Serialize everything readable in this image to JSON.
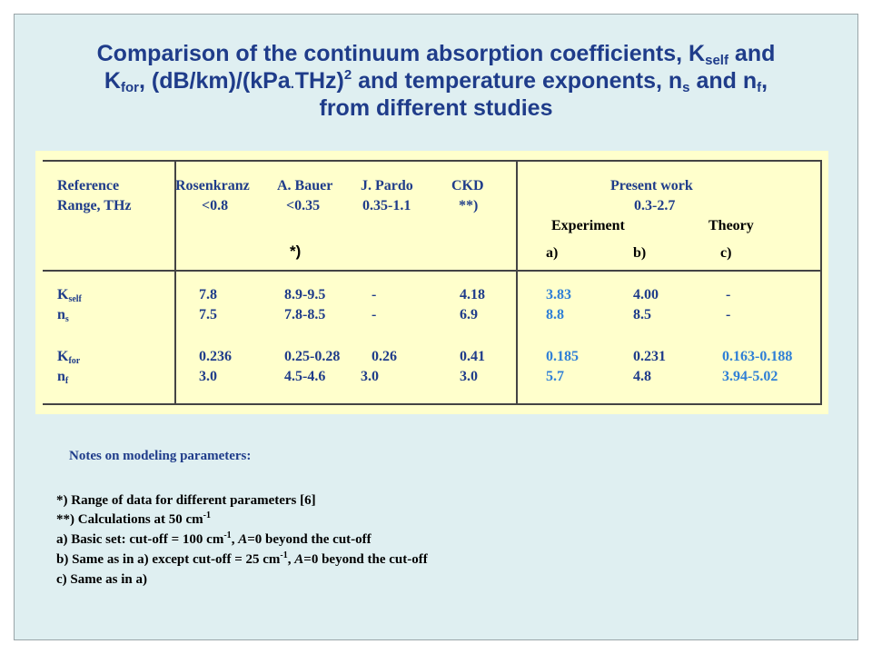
{
  "title": {
    "line1_a": "Comparison of the continuum absorption coefficients, K",
    "line1_sub": "self",
    "line1_b": " and",
    "line2_a": "K",
    "line2_sub1": "for",
    "line2_b": ", (dB/km)/(kPa",
    "line2_dot": "·",
    "line2_c": "THz)",
    "line2_sup": "2",
    "line2_d": " and temperature exponents, n",
    "line2_sub2": "s",
    "line2_e": " and n",
    "line2_sub3": "f",
    "line2_f": ",",
    "line3": "from different studies"
  },
  "table": {
    "header": {
      "reference": "Reference",
      "range": "Range, THz",
      "rosenkranz": "Rosenkranz",
      "rosenkranz_range": "<0.8",
      "bauer": "A. Bauer",
      "bauer_range": "<0.35",
      "bauer_note": "*)",
      "pardo": "J. Pardo",
      "pardo_range": "0.35-1.1",
      "ckd": "CKD",
      "ckd_range": "**)",
      "present": "Present work",
      "present_range": "0.3-2.7",
      "experiment": "Experiment",
      "theory": "Theory",
      "col_a": "a)",
      "col_b": "b)",
      "col_c": "c)"
    },
    "rows": [
      {
        "label": "K",
        "sub": "self",
        "rosenkranz": "7.8",
        "bauer": "8.9-9.5",
        "pardo": "-",
        "ckd": "4.18",
        "a": "3.83",
        "b": "4.00",
        "c": "-"
      },
      {
        "label": "n",
        "sub": "s",
        "rosenkranz": "7.5",
        "bauer": "7.8-8.5",
        "pardo": "-",
        "ckd": "6.9",
        "a": "8.8",
        "b": "8.5",
        "c": "-"
      },
      {
        "label": "K",
        "sub": "for",
        "rosenkranz": "0.236",
        "bauer": "0.25-0.28",
        "pardo": "0.26",
        "ckd": "0.41",
        "a": "0.185",
        "b": "0.231",
        "c": "0.163-0.188"
      },
      {
        "label": "n",
        "sub": "f",
        "rosenkranz": "3.0",
        "bauer": "4.5-4.6",
        "pardo": "3.0",
        "ckd": "3.0",
        "a": "5.7",
        "b": "4.8",
        "c": "3.94-5.02"
      }
    ]
  },
  "notes": {
    "heading": "Notes on modeling parameters:",
    "n1": "*) Range of data for different parameters [6]",
    "n2_a": "**) Calculations at 50 cm",
    "n2_sup": "-1",
    "n3_a": "a) Basic set: cut-off = 100 cm",
    "n3_sup": "-1",
    "n3_b": ", ",
    "n3_italic": "A",
    "n3_c": "=0 beyond the cut-off",
    "n4_a": "b) Same as in a) except cut-off = 25 cm",
    "n4_sup": "-1",
    "n4_b": ", ",
    "n4_italic": "A",
    "n4_c": "=0 beyond the cut-off",
    "n5": "c) Same as in a)"
  }
}
